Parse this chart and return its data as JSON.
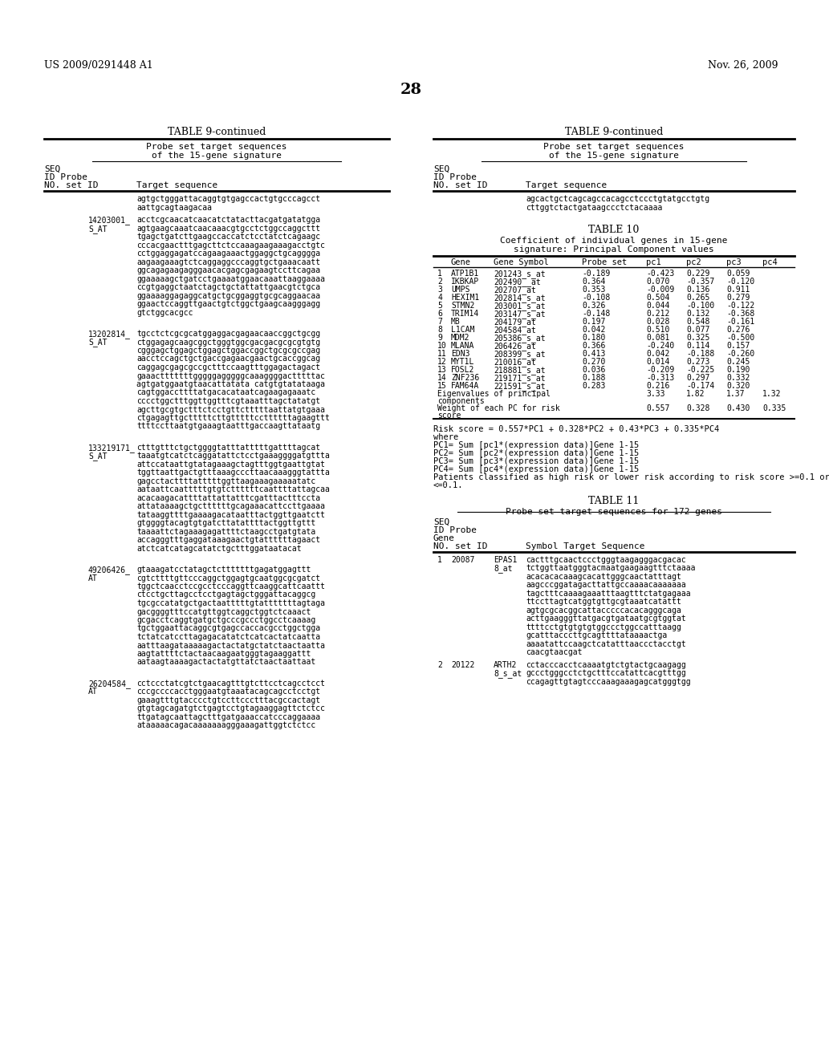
{
  "header_left": "US 2009/0291448 A1",
  "header_right": "Nov. 26, 2009",
  "page_number": "28",
  "left_table_title": "TABLE 9-continued",
  "right_table_title": "TABLE 9-continued",
  "left_table_subtitle1": "Probe set target sequences",
  "left_table_subtitle2": "of the 15-gene signature",
  "right_table_subtitle1": "Probe set target sequences",
  "right_table_subtitle2": "of the 15-gene signature",
  "table10_title": "TABLE 10",
  "table10_subtitle": "Coefficient of individual genes in 15-gene",
  "table10_subtitle2": "signature: Principal Component values",
  "table10_rows": [
    [
      "1",
      "ATP1B1",
      "201243_s_at",
      "-0.189",
      "-0.423",
      "0.229",
      "0.059"
    ],
    [
      "2",
      "IKBKAP",
      "202490__at",
      "0.364",
      "0.070",
      "-0.357",
      "-0.120"
    ],
    [
      "3",
      "UMPS",
      "202707_at",
      "0.353",
      "-0.009",
      "0.136",
      "0.911"
    ],
    [
      "4",
      "HEXIM1",
      "202814_s_at",
      "-0.108",
      "0.504",
      "0.265",
      "0.279"
    ],
    [
      "5",
      "STMN2",
      "203001_s_at",
      "0.326",
      "0.044",
      "-0.100",
      "-0.122"
    ],
    [
      "6",
      "TRIM14",
      "203147_s_at",
      "-0.148",
      "0.212",
      "0.132",
      "-0.368"
    ],
    [
      "7",
      "MB",
      "204179_at",
      "0.197",
      "0.028",
      "0.548",
      "-0.161"
    ],
    [
      "8",
      "L1CAM",
      "204584_at",
      "0.042",
      "0.510",
      "0.077",
      "0.276"
    ],
    [
      "9",
      "MDM2",
      "205386_s_at",
      "0.180",
      "0.081",
      "0.325",
      "-0.500"
    ],
    [
      "10",
      "MLANA",
      "206426_at",
      "0.366",
      "-0.240",
      "0.114",
      "0.157"
    ],
    [
      "11",
      "EDN3",
      "208399_s_at",
      "0.413",
      "0.042",
      "-0.188",
      "-0.260"
    ],
    [
      "12",
      "MYT1L",
      "210016_at",
      "0.270",
      "0.014",
      "0.273",
      "0.245"
    ],
    [
      "13",
      "FOSL2",
      "218881_s_at",
      "0.036",
      "-0.209",
      "-0.225",
      "0.190"
    ],
    [
      "14",
      "ZNF236",
      "219171_s_at",
      "0.188",
      "-0.313",
      "0.297",
      "0.332"
    ],
    [
      "15",
      "FAM64A",
      "221591_s_at",
      "0.283",
      "0.216",
      "-0.174",
      "0.320"
    ]
  ],
  "table10_eigen_values": [
    "3.33",
    "1.82",
    "1.37",
    "1.32"
  ],
  "table10_weight_values": [
    "0.557",
    "0.328",
    "0.430",
    "0.335"
  ],
  "risk_score_text": [
    "Risk score = 0.557*PC1 + 0.328*PC2 + 0.43*PC3 + 0.335*PC4",
    "where",
    "PC1= Sum [pc1*(expression data)]Gene 1-15",
    "PC2= Sum [pc2*(expression data)]Gene 1-15",
    "PC3= Sum [pc3*(expression data)]Gene 1-15",
    "PC4= Sum [pc4*(expression data)]Gene 1-15",
    "Patients classified as high risk or lower risk according to risk score >=0.1 or",
    "<=0.1."
  ],
  "table11_title": "TABLE 11",
  "table11_subtitle": "Probe set target sequences for 172 genes",
  "table11_rows": [
    {
      "num": "1",
      "id": "20087",
      "probe": "EPAS1",
      "set": "8_at",
      "seq": [
        "cactttgcaactccctgggtaagagggacgacac",
        "tctggttaatgggtacmaatgaagaagtttctaaaa",
        "acacacacaaagcacattgggcaactatttagt",
        "aagcccggatagacttattgccaaaacaaaaaaa",
        "tagctttcaaaagaaatttaagtttctatgagaaa",
        "ttccttagtcatggtgttgcgtaaatcatattt",
        "agtgcgcacggcattacccccacacagggcaga",
        "acttgaagggttatgacgtgataatgcgtggtat",
        "ttttcctgtgtgtgtggccctggccatttaagg",
        "gcatttacccttgcagttttataaaactga",
        "aaaatattccaagctcatatttaaccctacctgt",
        "caacgtaacgat"
      ]
    },
    {
      "num": "2",
      "id": "20122",
      "probe": "ARTH2",
      "set": "8_s_at",
      "seq": [
        "cctacccacctcaaaatgtctgtactgcaagagg",
        "gccctgggcctctgctttccatattcacgtttgg",
        "ccagagttgtagtcccaaagaaagagcatgggtgg"
      ]
    }
  ]
}
